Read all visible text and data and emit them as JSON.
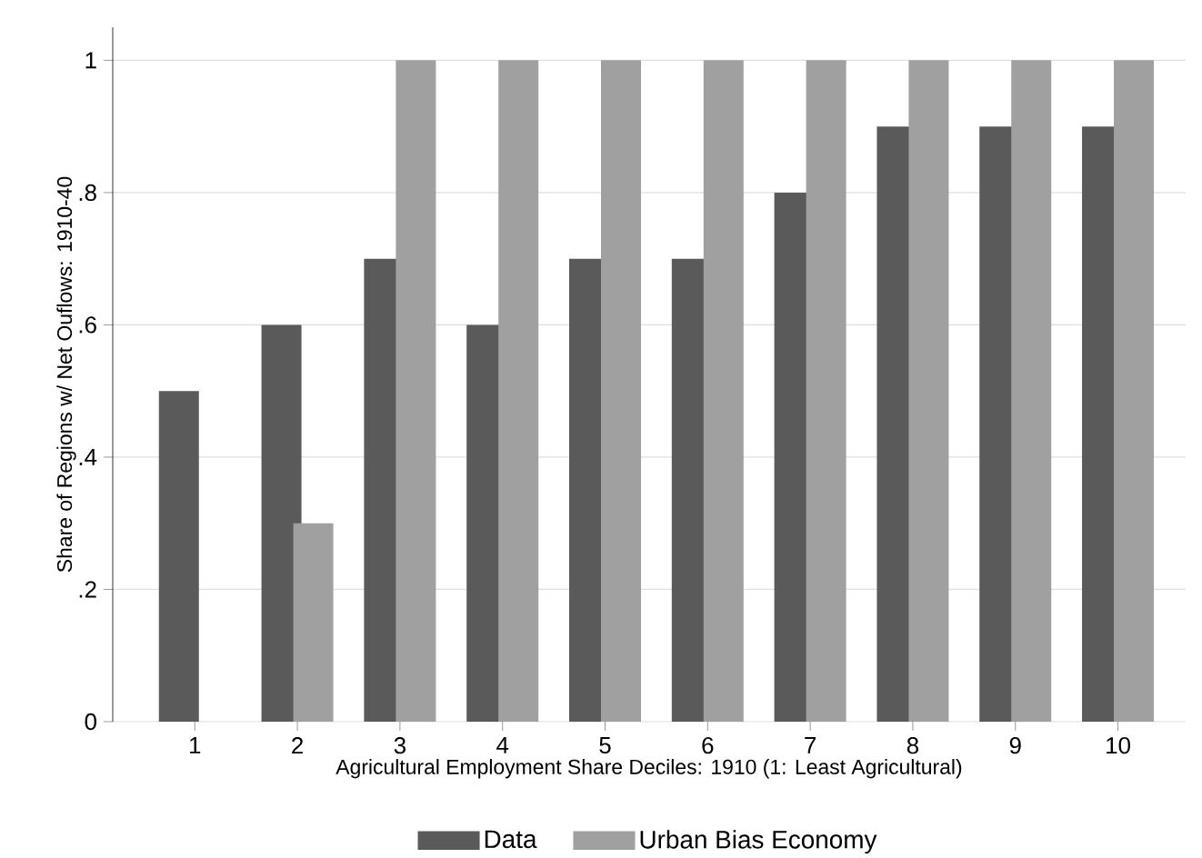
{
  "chart_data": {
    "type": "bar",
    "xlabel": "Agricultural Employment Share Deciles: 1910 (1: Least Agricultural)",
    "ylabel": "Share of Regions w/ Net Ouflows: 1910-40",
    "categories": [
      "1",
      "2",
      "3",
      "4",
      "5",
      "6",
      "7",
      "8",
      "9",
      "10"
    ],
    "series": [
      {
        "name": "Data",
        "color": "#5a5a5a",
        "values": [
          0.5,
          0.6,
          0.7,
          0.6,
          0.7,
          0.7,
          0.8,
          0.9,
          0.9,
          0.9
        ]
      },
      {
        "name": "Urban Bias Economy",
        "color": "#a0a0a0",
        "values": [
          0,
          0.3,
          1,
          1,
          1,
          1,
          1,
          1,
          1,
          1
        ]
      }
    ],
    "ylim": [
      0,
      1.05
    ],
    "yticks": [
      0,
      {
        "value": 0.2,
        "label": ".2"
      },
      {
        "value": 0.4,
        "label": ".4"
      },
      {
        "value": 0.6,
        "label": ".6"
      },
      {
        "value": 0.8,
        "label": ".8"
      },
      1
    ],
    "grid": "y",
    "legend": "bottom"
  }
}
